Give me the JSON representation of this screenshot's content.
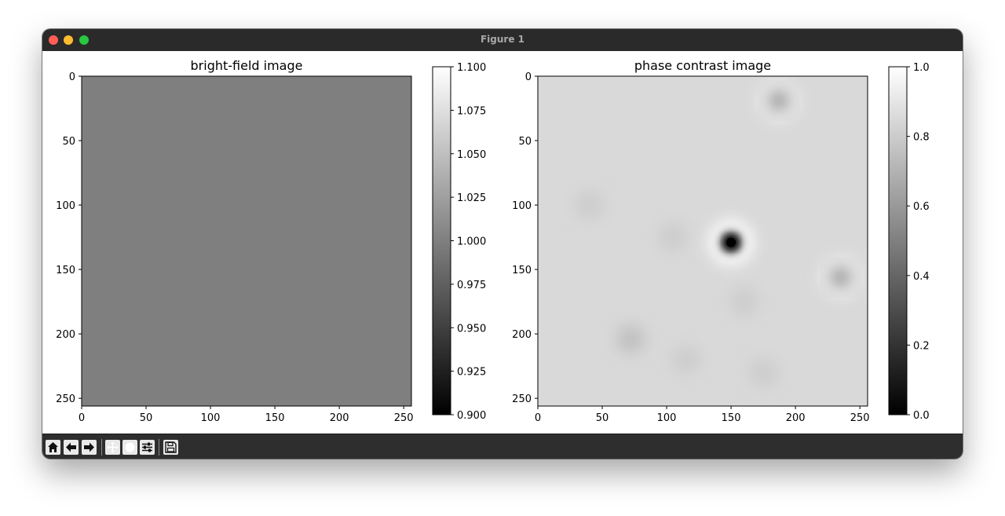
{
  "window": {
    "title": "Figure 1"
  },
  "toolbar": {
    "buttons": [
      "home-icon",
      "back-arrow-icon",
      "forward-arrow-icon",
      "pan-icon",
      "zoom-icon",
      "configure-subplots-icon",
      "save-icon"
    ]
  },
  "chart_data": [
    {
      "type": "heatmap",
      "title": "bright-field image",
      "x_ticks": [
        "0",
        "50",
        "100",
        "150",
        "200",
        "250"
      ],
      "y_ticks": [
        "0",
        "50",
        "100",
        "150",
        "200",
        "250"
      ],
      "xlim": [
        0,
        256
      ],
      "ylim": [
        256,
        0
      ],
      "uniform_value": 1.0,
      "colormap": "gray",
      "colorbar": {
        "range": [
          0.9,
          1.1
        ],
        "ticks": [
          "0.900",
          "0.925",
          "0.950",
          "0.975",
          "1.000",
          "1.025",
          "1.050",
          "1.075",
          "1.100"
        ]
      }
    },
    {
      "type": "heatmap",
      "title": "phase contrast image",
      "x_ticks": [
        "0",
        "50",
        "100",
        "150",
        "200",
        "250"
      ],
      "y_ticks": [
        "0",
        "50",
        "100",
        "150",
        "200",
        "250"
      ],
      "xlim": [
        0,
        256
      ],
      "ylim": [
        256,
        0
      ],
      "background_value": 0.85,
      "colormap": "gray",
      "features": [
        {
          "x": 150,
          "y": 129,
          "value": 0.0
        },
        {
          "x": 187,
          "y": 19,
          "value": 0.55
        },
        {
          "x": 235,
          "y": 156,
          "value": 0.55
        },
        {
          "x": 72,
          "y": 204,
          "value": 0.75
        },
        {
          "x": 40,
          "y": 100,
          "value": 0.8
        },
        {
          "x": 105,
          "y": 125,
          "value": 0.8
        },
        {
          "x": 160,
          "y": 175,
          "value": 0.8
        },
        {
          "x": 175,
          "y": 230,
          "value": 0.8
        },
        {
          "x": 115,
          "y": 220,
          "value": 0.8
        }
      ],
      "colorbar": {
        "range": [
          0.0,
          1.0
        ],
        "ticks": [
          "0.0",
          "0.2",
          "0.4",
          "0.6",
          "0.8",
          "1.0"
        ]
      }
    }
  ]
}
